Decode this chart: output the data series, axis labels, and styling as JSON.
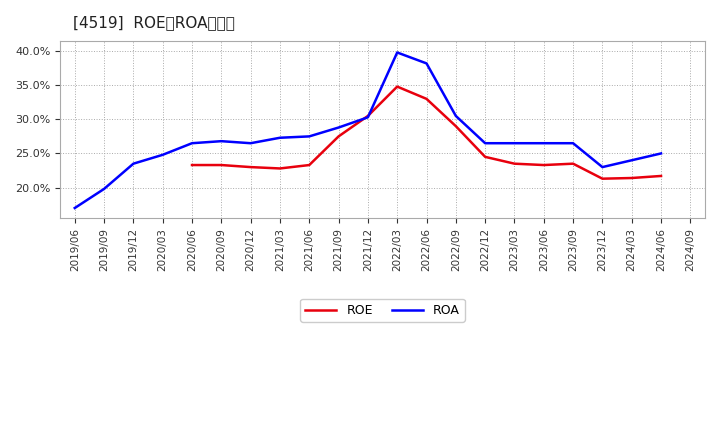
{
  "title": "[4519]  ROE、ROAの推移",
  "all_dates": [
    "2019/06",
    "2019/09",
    "2019/12",
    "2020/03",
    "2020/06",
    "2020/09",
    "2020/12",
    "2021/03",
    "2021/06",
    "2021/09",
    "2021/12",
    "2022/03",
    "2022/06",
    "2022/09",
    "2022/12",
    "2023/03",
    "2023/06",
    "2023/09",
    "2023/12",
    "2024/03",
    "2024/06",
    "2024/09"
  ],
  "roe_values": [
    null,
    null,
    null,
    null,
    23.3,
    23.3,
    23.0,
    22.8,
    23.3,
    27.5,
    30.5,
    34.8,
    33.0,
    29.0,
    24.5,
    23.5,
    23.3,
    23.5,
    21.3,
    21.4,
    21.7,
    null
  ],
  "roa_values": [
    17.0,
    19.8,
    23.5,
    24.8,
    26.5,
    26.8,
    26.5,
    27.3,
    27.5,
    28.8,
    30.3,
    39.8,
    38.2,
    30.5,
    26.5,
    26.5,
    26.5,
    26.5,
    23.0,
    24.0,
    25.0,
    null
  ],
  "roe_color": "#e8000d",
  "roa_color": "#0000ff",
  "background_color": "#ffffff",
  "grid_color": "#aaaaaa",
  "yticks": [
    20.0,
    25.0,
    30.0,
    35.0,
    40.0
  ],
  "ylim_min": 15.5,
  "ylim_max": 41.5
}
